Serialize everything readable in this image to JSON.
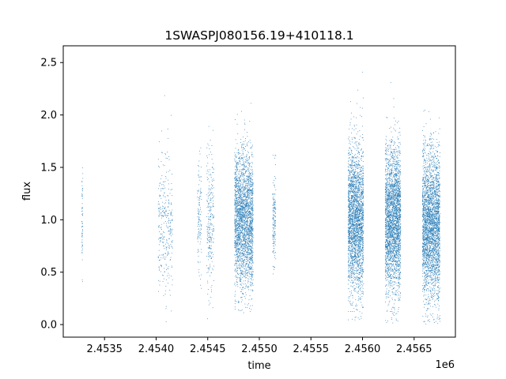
{
  "chart_data": {
    "type": "scatter",
    "title": "1SWASPJ080156.19+410118.1",
    "xlabel": "time",
    "ylabel": "flux",
    "x_offset_label": "1e6",
    "xlim": [
      2453100,
      2456900
    ],
    "ylim": [
      -0.12,
      2.66
    ],
    "x_ticks": [
      2453500,
      2454000,
      2454500,
      2455000,
      2455500,
      2456000,
      2456500
    ],
    "x_tick_labels": [
      "2.4535",
      "2.4540",
      "2.4545",
      "2.4550",
      "2.4555",
      "2.4560",
      "2.4565"
    ],
    "y_ticks": [
      0.0,
      0.5,
      1.0,
      1.5,
      2.0,
      2.5
    ],
    "y_tick_labels": [
      "0.0",
      "0.5",
      "1.0",
      "1.5",
      "2.0",
      "2.5"
    ],
    "grid": false,
    "marker_color": "#1f77b4",
    "series": [
      {
        "clusters": [
          {
            "x_start": 2453280,
            "x_end": 2453290,
            "count": 60,
            "y_min": 0.35,
            "y_max": 1.65,
            "y_center": 1.0,
            "y_spread": 0.25
          },
          {
            "x_start": 2454020,
            "x_end": 2454160,
            "count": 320,
            "y_min": 0.0,
            "y_max": 2.3,
            "y_center": 0.95,
            "y_spread": 0.33
          },
          {
            "x_start": 2454400,
            "x_end": 2454440,
            "count": 120,
            "y_min": 0.07,
            "y_max": 2.05,
            "y_center": 1.0,
            "y_spread": 0.28
          },
          {
            "x_start": 2454490,
            "x_end": 2454560,
            "count": 260,
            "y_min": 0.05,
            "y_max": 2.37,
            "y_center": 1.0,
            "y_spread": 0.33
          },
          {
            "x_start": 2454760,
            "x_end": 2454940,
            "count": 2600,
            "y_min": 0.1,
            "y_max": 2.38,
            "y_center": 1.0,
            "y_spread": 0.32
          },
          {
            "x_start": 2455130,
            "x_end": 2455160,
            "count": 160,
            "y_min": 0.45,
            "y_max": 2.05,
            "y_center": 1.0,
            "y_spread": 0.22
          },
          {
            "x_start": 2455860,
            "x_end": 2456010,
            "count": 2600,
            "y_min": 0.03,
            "y_max": 2.55,
            "y_center": 1.0,
            "y_spread": 0.35
          },
          {
            "x_start": 2456220,
            "x_end": 2456370,
            "count": 2800,
            "y_min": 0.0,
            "y_max": 2.55,
            "y_center": 1.0,
            "y_spread": 0.35
          },
          {
            "x_start": 2456580,
            "x_end": 2456750,
            "count": 3000,
            "y_min": 0.0,
            "y_max": 2.5,
            "y_center": 0.95,
            "y_spread": 0.35
          }
        ]
      }
    ]
  }
}
